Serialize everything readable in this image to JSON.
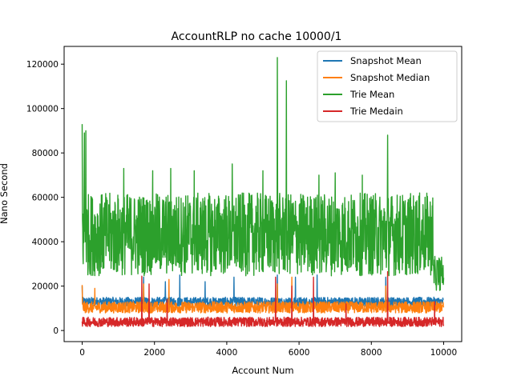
{
  "chart_data": {
    "type": "line",
    "title": "AccountRLP no cache 10000/1",
    "xlabel": "Account Num",
    "ylabel": "Nano Second",
    "xlim": [
      -500,
      10500
    ],
    "ylim": [
      -5000,
      128000
    ],
    "xticks": [
      0,
      2000,
      4000,
      6000,
      8000,
      10000
    ],
    "yticks": [
      0,
      20000,
      40000,
      60000,
      80000,
      100000,
      120000
    ],
    "xtick_labels": [
      "0",
      "2000",
      "4000",
      "6000",
      "8000",
      "10000"
    ],
    "ytick_labels": [
      "0",
      "20000",
      "40000",
      "60000",
      "80000",
      "100000",
      "120000"
    ],
    "grid": false,
    "legend_position": "top-right",
    "colors": {
      "snapshot_mean": "#1f77b4",
      "snapshot_median": "#ff7f0e",
      "trie_mean": "#2ca02c",
      "trie_median": "#d62728"
    },
    "series": [
      {
        "name": "Snapshot Mean",
        "color": "#1f77b4",
        "band": {
          "x_end": 10000,
          "typical_low": 10000,
          "typical_high": 15000
        },
        "spikes": [
          [
            0,
            20000
          ],
          [
            1700,
            24000
          ],
          [
            2300,
            22000
          ],
          [
            2700,
            25000
          ],
          [
            3400,
            22000
          ],
          [
            4200,
            24000
          ],
          [
            5400,
            25000
          ],
          [
            5900,
            24000
          ],
          [
            6500,
            25000
          ],
          [
            8400,
            24000
          ]
        ]
      },
      {
        "name": "Snapshot Median",
        "color": "#ff7f0e",
        "band": {
          "x_end": 10000,
          "typical_low": 7000,
          "typical_high": 13000
        },
        "spikes": [
          [
            0,
            20500
          ],
          [
            350,
            19000
          ],
          [
            1700,
            21000
          ],
          [
            2400,
            23000
          ],
          [
            5400,
            21000
          ],
          [
            5800,
            24000
          ],
          [
            8400,
            20000
          ],
          [
            9900,
            12000
          ]
        ]
      },
      {
        "name": "Trie Mean",
        "color": "#2ca02c",
        "band": {
          "x_end": 10000,
          "typical_low": 18000,
          "typical_high": 62000
        },
        "spikes": [
          [
            0,
            93000
          ],
          [
            60,
            89000
          ],
          [
            100,
            90000
          ],
          [
            1150,
            73000
          ],
          [
            1950,
            72000
          ],
          [
            2450,
            73000
          ],
          [
            3100,
            72000
          ],
          [
            4150,
            75000
          ],
          [
            5000,
            72000
          ],
          [
            5400,
            123000
          ],
          [
            5650,
            112500
          ],
          [
            6550,
            70000
          ],
          [
            7000,
            71000
          ],
          [
            7750,
            70000
          ],
          [
            8450,
            88000
          ],
          [
            9500,
            48000
          ]
        ]
      },
      {
        "name": "Trie Medain",
        "color": "#d62728",
        "band": {
          "x_end": 10000,
          "typical_low": 1000,
          "typical_high": 6000
        },
        "spikes": [
          [
            1650,
            24500
          ],
          [
            1850,
            21000
          ],
          [
            2350,
            14000
          ],
          [
            5350,
            24000
          ],
          [
            5800,
            20000
          ],
          [
            6400,
            24000
          ],
          [
            7300,
            12000
          ],
          [
            8450,
            26500
          ],
          [
            9750,
            13000
          ]
        ]
      }
    ]
  }
}
